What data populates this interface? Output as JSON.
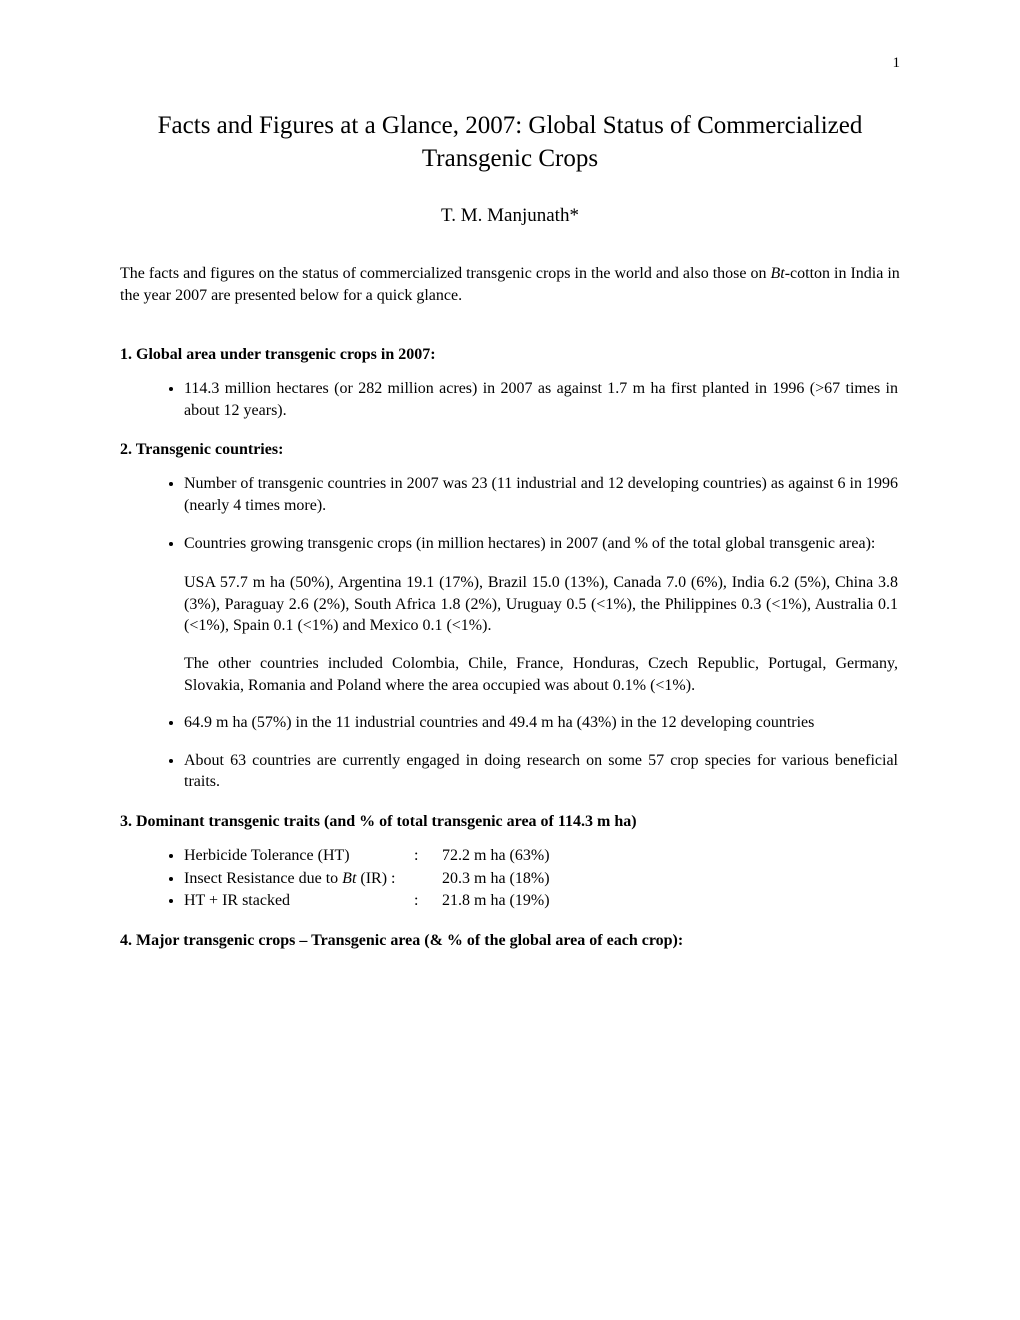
{
  "pageNumber": "1",
  "title": "Facts and Figures at a Glance, 2007: Global Status of Commercialized Transgenic Crops",
  "author": "T. M. Manjunath*",
  "intro": {
    "part1": "The facts and figures on the status of commercialized transgenic crops in the world and also those on ",
    "italic": "Bt-",
    "part2": "cotton in India in the year 2007 are presented below for a quick glance."
  },
  "section1": {
    "heading": "1. Global area under transgenic crops in 2007:",
    "bullet1": "114.3 million hectares (or 282 million acres) in 2007 as against 1.7 m ha first planted in 1996 (>67 times in about 12 years)."
  },
  "section2": {
    "heading": "2. Transgenic countries:",
    "bullet1": "Number of transgenic countries in 2007 was 23 (11 industrial and 12 developing countries) as against 6 in 1996 (nearly 4 times more).",
    "bullet2": "Countries growing transgenic crops (in million hectares) in 2007 (and % of the total global transgenic area):",
    "para1": "USA 57.7 m ha (50%), Argentina 19.1 (17%), Brazil 15.0 (13%), Canada 7.0 (6%), India 6.2 (5%), China 3.8 (3%), Paraguay 2.6 (2%), South Africa 1.8 (2%), Uruguay 0.5 (<1%), the Philippines 0.3 (<1%), Australia 0.1 (<1%), Spain 0.1 (<1%) and Mexico 0.1 (<1%).",
    "para2": "The other countries included Colombia, Chile, France, Honduras, Czech Republic, Portugal, Germany, Slovakia, Romania and Poland where the area occupied was about 0.1% (<1%).",
    "bullet3": "64.9 m ha (57%) in the 11 industrial countries and 49.4 m ha (43%) in the 12 developing countries",
    "bullet4": "About 63 countries are currently engaged in doing research on some 57 crop species for various beneficial traits."
  },
  "section3": {
    "heading": "3. Dominant transgenic traits (and % of total transgenic area of 114.3 m ha)",
    "traits": [
      {
        "label": "Herbicide Tolerance (HT)",
        "colon": ":",
        "value": "72.2 m ha  (63%)"
      },
      {
        "label_pre": "Insect Resistance due to ",
        "label_it": "Bt",
        "label_post": " (IR) :",
        "colon": "",
        "value": "20.3 m ha  (18%)"
      },
      {
        "label": "HT + IR stacked",
        "colon": ":",
        "value": " 21.8 m ha (19%)"
      }
    ]
  },
  "section4": {
    "heading": "4. Major transgenic crops – Transgenic area (& % of the global area of each crop):"
  }
}
